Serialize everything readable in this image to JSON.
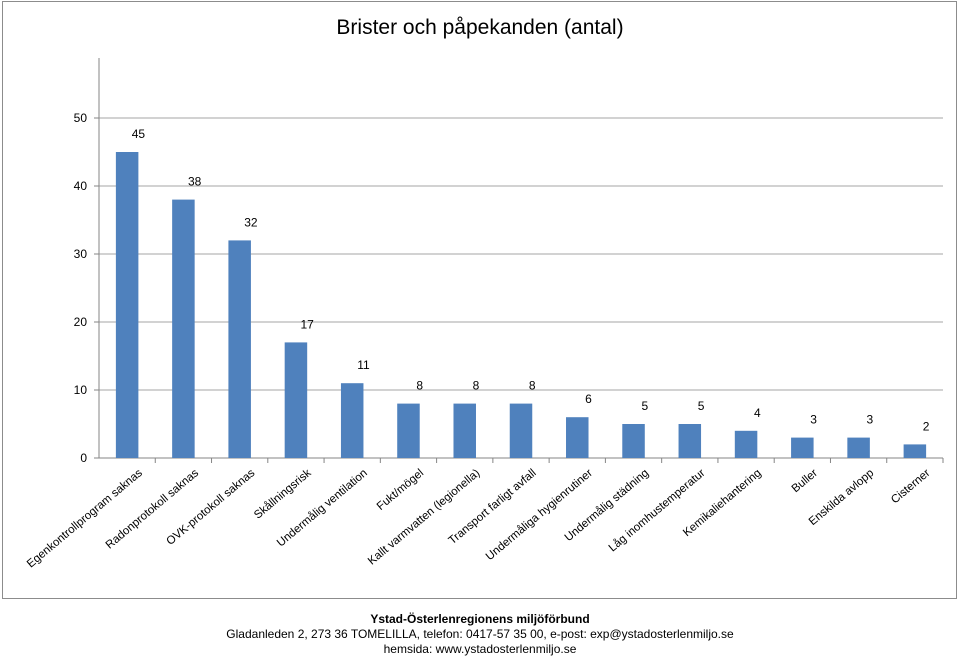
{
  "chart_data": {
    "type": "bar",
    "title": "Brister och påpekanden (antal)",
    "categories": [
      "Egenkontrollprogram saknas",
      "Radonprotokoll saknas",
      "OVK-protokoll saknas",
      "Skållningsrisk",
      "Undermålig ventilation",
      "Fukt/mögel",
      "Kallt varmvatten (legionella)",
      "Transport farligt avfall",
      "Undermåliga hygienrutiner",
      "Undermålig städning",
      "Låg inomhustemperatur",
      "Kemikaliehantering",
      "Buller",
      "Enskilda avlopp",
      "Cisterner"
    ],
    "values": [
      45,
      38,
      32,
      17,
      11,
      8,
      8,
      8,
      6,
      5,
      5,
      4,
      3,
      3,
      2
    ],
    "yticks": [
      0,
      10,
      20,
      30,
      40,
      50
    ],
    "ylim": [
      0,
      50
    ],
    "grid": true,
    "legend": "none",
    "bar_color": "#4f81bd",
    "grid_color": "#a6a6a6"
  },
  "footer": {
    "org": "Ystad-Österlenregionens miljöförbund",
    "address": "Gladanleden 2, 273 36  TOMELILLA, telefon: 0417-57 35 00, e-post: exp@ystadosterlenmiljo.se",
    "web": "hemsida: www.ystadosterlenmiljo.se"
  }
}
